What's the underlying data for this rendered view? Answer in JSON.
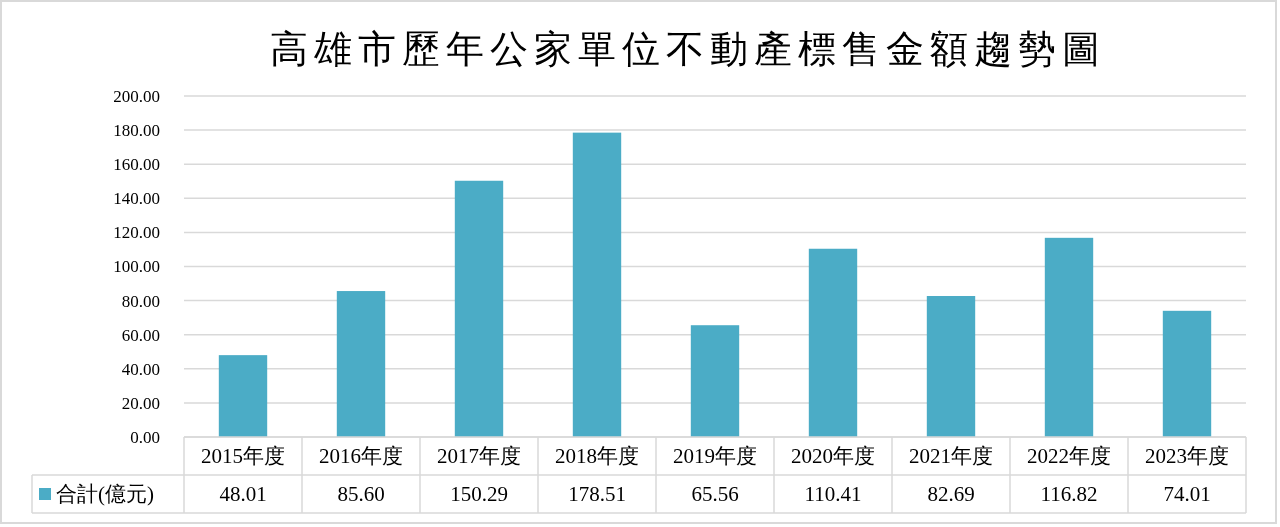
{
  "chart_data": {
    "type": "bar",
    "title": "高雄市歷年公家單位不動產標售金額趨勢圖",
    "categories": [
      "2015年度",
      "2016年度",
      "2017年度",
      "2018年度",
      "2019年度",
      "2020年度",
      "2021年度",
      "2022年度",
      "2023年度"
    ],
    "series": [
      {
        "name": "合計(億元)",
        "color": "#4bacc6",
        "values": [
          48.01,
          85.6,
          150.29,
          178.51,
          65.56,
          110.41,
          82.69,
          116.82,
          74.01
        ],
        "value_labels": [
          "48.01",
          "85.60",
          "150.29",
          "178.51",
          "65.56",
          "110.41",
          "82.69",
          "116.82",
          "74.01"
        ]
      }
    ],
    "ylim": [
      0,
      200
    ],
    "yticks": [
      {
        "value": 0,
        "label": "0.00"
      },
      {
        "value": 20,
        "label": "20.00"
      },
      {
        "value": 40,
        "label": "40.00"
      },
      {
        "value": 60,
        "label": "60.00"
      },
      {
        "value": 80,
        "label": "80.00"
      },
      {
        "value": 100,
        "label": "100.00"
      },
      {
        "value": 120,
        "label": "120.00"
      },
      {
        "value": 140,
        "label": "140.00"
      },
      {
        "value": 160,
        "label": "160.00"
      },
      {
        "value": 180,
        "label": "180.00"
      },
      {
        "value": 200,
        "label": "200.00"
      }
    ],
    "grid": "y",
    "legend": "bottom"
  }
}
